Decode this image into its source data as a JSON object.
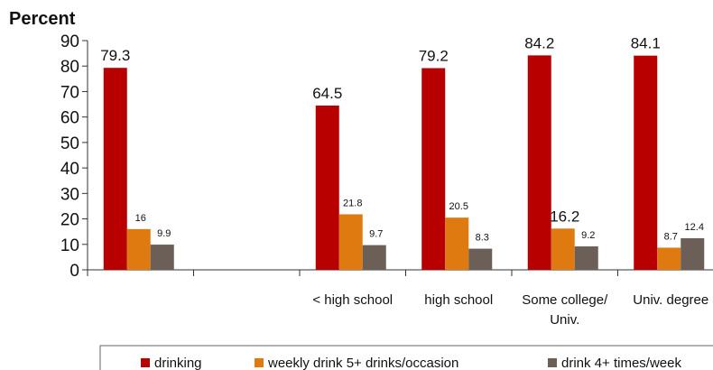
{
  "chart_data": {
    "type": "bar",
    "ylabel": "Percent",
    "ylim": [
      0,
      90
    ],
    "yticks": [
      0,
      10,
      20,
      30,
      40,
      50,
      60,
      70,
      80,
      90
    ],
    "grid": false,
    "legend_position": "bottom",
    "categories": [
      {
        "lines": []
      },
      {
        "lines": []
      },
      {
        "lines": [
          "< high school"
        ]
      },
      {
        "lines": [
          "high school"
        ]
      },
      {
        "lines": [
          "Some college/",
          "Univ."
        ]
      },
      {
        "lines": [
          "Univ. degree"
        ]
      }
    ],
    "series": [
      {
        "name": "drinking",
        "color": "#b80000",
        "values": [
          79.3,
          null,
          64.5,
          79.2,
          84.2,
          84.1
        ],
        "labels": [
          "79.3",
          null,
          "64.5",
          "79.2",
          "84.2",
          "84.1"
        ]
      },
      {
        "name": "weekly drink 5+ drinks/occasion",
        "color": "#df7a10",
        "values": [
          16,
          null,
          21.8,
          20.5,
          16.2,
          8.7
        ],
        "labels": [
          "16",
          null,
          "21.8",
          "20.5",
          "16.2",
          "8.7"
        ]
      },
      {
        "name": "drink 4+ times/week",
        "color": "#6b5f57",
        "values": [
          9.9,
          null,
          9.7,
          8.3,
          9.2,
          12.4
        ],
        "labels": [
          "9.9",
          null,
          "9.7",
          "8.3",
          "9.2",
          "12.4"
        ]
      }
    ]
  }
}
